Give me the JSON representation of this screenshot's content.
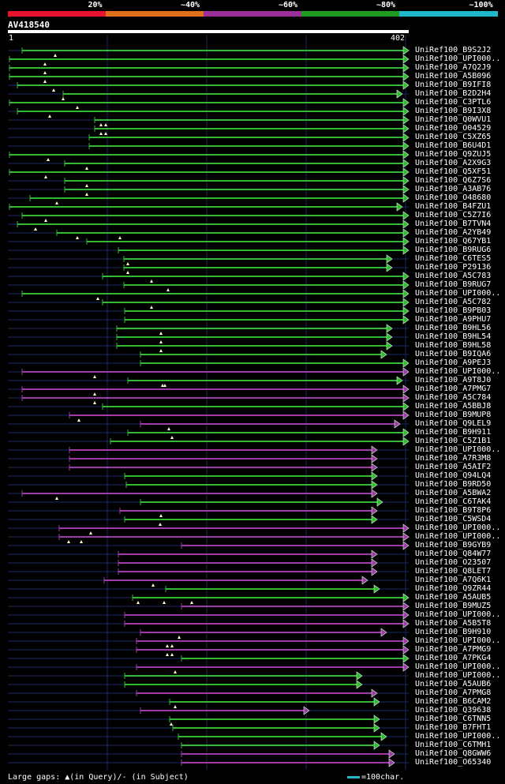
{
  "coverage_legend": [
    {
      "label": "20%",
      "color": "#e8132f"
    },
    {
      "label": "~40%",
      "color": "#e0701c"
    },
    {
      "label": "~60%",
      "color": "#9a2f9a"
    },
    {
      "label": "~80%",
      "color": "#1f9c1f"
    },
    {
      "label": "~100%",
      "color": "#1fb7c9"
    }
  ],
  "query": {
    "name": "AV418540",
    "start": "1",
    "end": "402"
  },
  "colors": {
    "green": "#33b833",
    "purple": "#a03aa8",
    "dim": "#1a2a66",
    "axis": "#1c2a55",
    "marker": "#ffffcc"
  },
  "hits": [
    {
      "id": "UniRef100_B9S2J2",
      "s": 28,
      "e": 518,
      "c": "green",
      "m": [
        70
      ]
    },
    {
      "id": "UniRef100_UPI000..",
      "s": 12,
      "e": 518,
      "c": "green",
      "m": [
        57
      ]
    },
    {
      "id": "UniRef100_A7Q2J9",
      "s": 12,
      "e": 518,
      "c": "green",
      "m": [
        57
      ]
    },
    {
      "id": "UniRef100_A5B096",
      "s": 12,
      "e": 518,
      "c": "green",
      "m": [
        57
      ]
    },
    {
      "id": "UniRef100_B9IFI8",
      "s": 22,
      "e": 518,
      "c": "green",
      "m": [
        68
      ]
    },
    {
      "id": "UniRef100_B2D2H4",
      "s": 80,
      "e": 510,
      "c": "green",
      "m": [
        80
      ]
    },
    {
      "id": "UniRef100_C3PTL6",
      "s": 12,
      "e": 518,
      "c": "green",
      "m": [
        98
      ]
    },
    {
      "id": "UniRef100_B9I3X8",
      "s": 22,
      "e": 518,
      "c": "green",
      "m": [
        63
      ]
    },
    {
      "id": "UniRef100_Q0WVU1",
      "s": 120,
      "e": 518,
      "c": "green",
      "m": [
        128,
        134
      ]
    },
    {
      "id": "UniRef100_O04529",
      "s": 120,
      "e": 518,
      "c": "green",
      "m": [
        128,
        134
      ]
    },
    {
      "id": "UniRef100_C5XZ65",
      "s": 113,
      "e": 518,
      "c": "green",
      "m": []
    },
    {
      "id": "UniRef100_B6U4D1",
      "s": 113,
      "e": 518,
      "c": "green",
      "m": []
    },
    {
      "id": "UniRef100_Q9ZUJ5",
      "s": 12,
      "e": 518,
      "c": "green",
      "m": [
        61
      ]
    },
    {
      "id": "UniRef100_A2X9G3",
      "s": 82,
      "e": 518,
      "c": "green",
      "m": [
        110
      ]
    },
    {
      "id": "UniRef100_Q5XF51",
      "s": 12,
      "e": 518,
      "c": "green",
      "m": [
        58
      ]
    },
    {
      "id": "UniRef100_Q6Z7S6",
      "s": 82,
      "e": 518,
      "c": "green",
      "m": [
        110
      ]
    },
    {
      "id": "UniRef100_A3AB76",
      "s": 82,
      "e": 518,
      "c": "green",
      "m": [
        110
      ]
    },
    {
      "id": "UniRef100_O48680",
      "s": 38,
      "e": 518,
      "c": "green",
      "m": [
        72
      ]
    },
    {
      "id": "UniRef100_B4FZU1",
      "s": 12,
      "e": 510,
      "c": "green",
      "m": []
    },
    {
      "id": "UniRef100_C5Z7I6",
      "s": 28,
      "e": 518,
      "c": "green",
      "m": [
        58
      ]
    },
    {
      "id": "UniRef100_B7TVN4",
      "s": 22,
      "e": 518,
      "c": "green",
      "m": [
        45
      ]
    },
    {
      "id": "UniRef100_A2YB49",
      "s": 72,
      "e": 518,
      "c": "green",
      "m": [
        98,
        152
      ]
    },
    {
      "id": "UniRef100_Q67YB1",
      "s": 110,
      "e": 518,
      "c": "green",
      "m": []
    },
    {
      "id": "UniRef100_B9RUG6",
      "s": 150,
      "e": 518,
      "c": "green",
      "m": []
    },
    {
      "id": "UniRef100_C6TES5",
      "s": 157,
      "e": 497,
      "c": "green",
      "m": [
        162
      ]
    },
    {
      "id": "UniRef100_P29136",
      "s": 157,
      "e": 497,
      "c": "green",
      "m": [
        162
      ]
    },
    {
      "id": "UniRef100_A5C783",
      "s": 130,
      "e": 518,
      "c": "green",
      "m": [
        192
      ]
    },
    {
      "id": "UniRef100_B9RUG7",
      "s": 157,
      "e": 518,
      "c": "green",
      "m": [
        213
      ]
    },
    {
      "id": "UniRef100_UPI000..",
      "s": 28,
      "e": 518,
      "c": "green",
      "m": [
        124
      ]
    },
    {
      "id": "UniRef100_A5C782",
      "s": 130,
      "e": 518,
      "c": "green",
      "m": [
        192
      ]
    },
    {
      "id": "UniRef100_B9PB03",
      "s": 158,
      "e": 518,
      "c": "green",
      "m": []
    },
    {
      "id": "UniRef100_A9PHU7",
      "s": 158,
      "e": 518,
      "c": "green",
      "m": []
    },
    {
      "id": "UniRef100_B9HL56",
      "s": 148,
      "e": 497,
      "c": "green",
      "m": [
        204
      ]
    },
    {
      "id": "UniRef100_B9HL54",
      "s": 148,
      "e": 497,
      "c": "green",
      "m": [
        204
      ]
    },
    {
      "id": "UniRef100_B9HL58",
      "s": 148,
      "e": 497,
      "c": "green",
      "m": [
        204
      ]
    },
    {
      "id": "UniRef100_B9IQA6",
      "s": 178,
      "e": 490,
      "c": "green",
      "m": []
    },
    {
      "id": "UniRef100_A9PEJ3",
      "s": 178,
      "e": 518,
      "c": "green",
      "m": []
    },
    {
      "id": "UniRef100_UPI000..",
      "s": 28,
      "e": 518,
      "c": "purple",
      "m": [
        120
      ]
    },
    {
      "id": "UniRef100_A9T8J0",
      "s": 162,
      "e": 510,
      "c": "green",
      "m": [
        206,
        209
      ]
    },
    {
      "id": "UniRef100_A7PMG7",
      "s": 28,
      "e": 518,
      "c": "purple",
      "m": [
        120
      ]
    },
    {
      "id": "UniRef100_A5C784",
      "s": 28,
      "e": 518,
      "c": "purple",
      "m": [
        120
      ]
    },
    {
      "id": "UniRef100_A5BBJ8",
      "s": 130,
      "e": 518,
      "c": "green",
      "m": []
    },
    {
      "id": "UniRef100_B9MUP8",
      "s": 88,
      "e": 518,
      "c": "purple",
      "m": [
        100
      ]
    },
    {
      "id": "UniRef100_Q9LEL9",
      "s": 178,
      "e": 507,
      "c": "purple",
      "m": [
        214
      ]
    },
    {
      "id": "UniRef100_B9H911",
      "s": 162,
      "e": 518,
      "c": "green",
      "m": [
        218
      ]
    },
    {
      "id": "UniRef100_C5Z1B1",
      "s": 140,
      "e": 518,
      "c": "green",
      "m": []
    },
    {
      "id": "UniRef100_UPI000..",
      "s": 88,
      "e": 478,
      "c": "purple",
      "m": []
    },
    {
      "id": "UniRef100_A7R3M8",
      "s": 88,
      "e": 478,
      "c": "purple",
      "m": []
    },
    {
      "id": "UniRef100_A5AIF2",
      "s": 88,
      "e": 478,
      "c": "purple",
      "m": []
    },
    {
      "id": "UniRef100_Q94LQ4",
      "s": 158,
      "e": 478,
      "c": "green",
      "m": []
    },
    {
      "id": "UniRef100_B9RD50",
      "s": 160,
      "e": 478,
      "c": "green",
      "m": []
    },
    {
      "id": "UniRef100_A5BWA2",
      "s": 28,
      "e": 478,
      "c": "purple",
      "m": [
        72
      ]
    },
    {
      "id": "UniRef100_C6TAK4",
      "s": 178,
      "e": 485,
      "c": "green",
      "m": []
    },
    {
      "id": "UniRef100_B9T8P6",
      "s": 152,
      "e": 478,
      "c": "purple",
      "m": [
        204
      ]
    },
    {
      "id": "UniRef100_C5WSD4",
      "s": 158,
      "e": 478,
      "c": "green",
      "m": [
        203
      ]
    },
    {
      "id": "UniRef100_UPI000..",
      "s": 75,
      "e": 518,
      "c": "purple",
      "m": [
        115
      ]
    },
    {
      "id": "UniRef100_UPI000..",
      "s": 75,
      "e": 518,
      "c": "purple",
      "m": [
        87,
        103
      ]
    },
    {
      "id": "UniRef100_B9GYB9",
      "s": 230,
      "e": 518,
      "c": "purple",
      "m": []
    },
    {
      "id": "UniRef100_Q84W77",
      "s": 150,
      "e": 478,
      "c": "purple",
      "m": []
    },
    {
      "id": "UniRef100_O23507",
      "s": 150,
      "e": 478,
      "c": "purple",
      "m": []
    },
    {
      "id": "UniRef100_Q8LET7",
      "s": 150,
      "e": 478,
      "c": "purple",
      "m": []
    },
    {
      "id": "UniRef100_A7Q6K1",
      "s": 132,
      "e": 466,
      "c": "purple",
      "m": [
        194
      ]
    },
    {
      "id": "UniRef100_Q9ZR44",
      "s": 210,
      "e": 481,
      "c": "green",
      "m": []
    },
    {
      "id": "UniRef100_A5AUB5",
      "s": 168,
      "e": 518,
      "c": "green",
      "m": [
        175,
        208,
        243
      ]
    },
    {
      "id": "UniRef100_B9MUZ5",
      "s": 230,
      "e": 518,
      "c": "purple",
      "m": []
    },
    {
      "id": "UniRef100_UPI000..",
      "s": 158,
      "e": 518,
      "c": "purple",
      "m": []
    },
    {
      "id": "UniRef100_A5B5T8",
      "s": 158,
      "e": 518,
      "c": "purple",
      "m": []
    },
    {
      "id": "UniRef100_B9H910",
      "s": 178,
      "e": 490,
      "c": "purple",
      "m": [
        227
      ]
    },
    {
      "id": "UniRef100_UPI000..",
      "s": 173,
      "e": 518,
      "c": "purple",
      "m": [
        212,
        218
      ]
    },
    {
      "id": "UniRef100_A7PMG9",
      "s": 173,
      "e": 518,
      "c": "purple",
      "m": [
        212,
        218
      ]
    },
    {
      "id": "UniRef100_A7PKG4",
      "s": 230,
      "e": 518,
      "c": "green",
      "m": []
    },
    {
      "id": "UniRef100_UPI000..",
      "s": 173,
      "e": 518,
      "c": "purple",
      "m": [
        222
      ]
    },
    {
      "id": "UniRef100_UPI000..",
      "s": 158,
      "e": 459,
      "c": "green",
      "m": []
    },
    {
      "id": "UniRef100_A5AUB6",
      "s": 158,
      "e": 459,
      "c": "green",
      "m": []
    },
    {
      "id": "UniRef100_A7PMG8",
      "s": 173,
      "e": 478,
      "c": "purple",
      "m": []
    },
    {
      "id": "UniRef100_B6CAM2",
      "s": 215,
      "e": 481,
      "c": "green",
      "m": [
        222
      ]
    },
    {
      "id": "UniRef100_Q39638",
      "s": 178,
      "e": 392,
      "c": "purple",
      "m": []
    },
    {
      "id": "UniRef100_C6TNN5",
      "s": 215,
      "e": 481,
      "c": "green",
      "m": [
        217
      ]
    },
    {
      "id": "UniRef100_B7FHT1",
      "s": 219,
      "e": 481,
      "c": "green",
      "m": []
    },
    {
      "id": "UniRef100_UPI000..",
      "s": 226,
      "e": 490,
      "c": "green",
      "m": []
    },
    {
      "id": "UniRef100_C6TMH1",
      "s": 230,
      "e": 481,
      "c": "green",
      "m": []
    },
    {
      "id": "UniRef100_Q8GWW6",
      "s": 230,
      "e": 500,
      "c": "purple",
      "m": []
    },
    {
      "id": "UniRef100_O65340",
      "s": 230,
      "e": 500,
      "c": "purple",
      "m": []
    }
  ],
  "footer": {
    "gaps_text": "Large gaps: ▲(in Query)/- (in Subject)",
    "scale_text": "=100char."
  }
}
